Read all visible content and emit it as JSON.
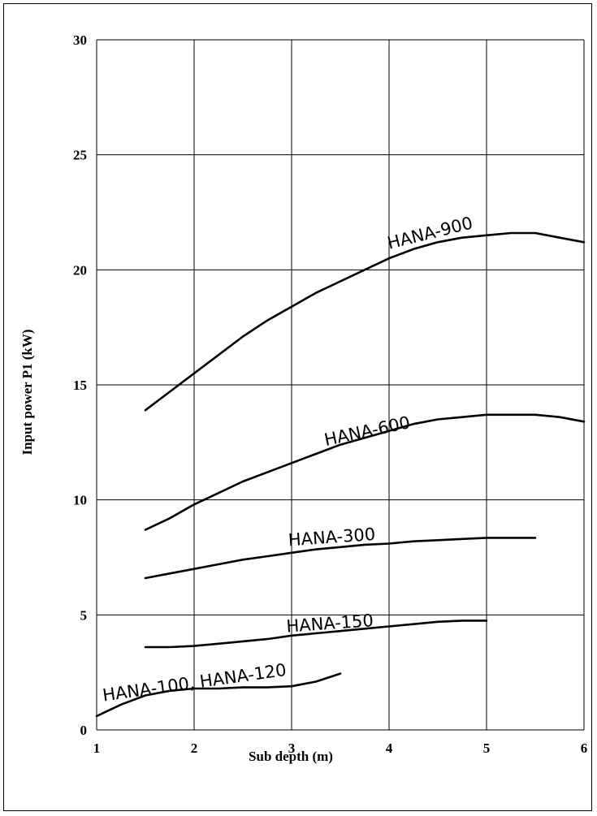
{
  "chart_data": {
    "type": "line",
    "xlabel": "Sub depth (m)",
    "ylabel": "Input power P1 (kW)",
    "xlim": [
      1,
      6
    ],
    "ylim": [
      0,
      30
    ],
    "xticks": [
      1,
      2,
      3,
      4,
      5,
      6
    ],
    "yticks": [
      0,
      5,
      10,
      15,
      20,
      25,
      30
    ],
    "grid": true,
    "series": [
      {
        "name": "HANA-900",
        "x": [
          1.5,
          1.75,
          2.0,
          2.25,
          2.5,
          2.75,
          3.0,
          3.25,
          3.5,
          3.75,
          4.0,
          4.25,
          4.5,
          4.75,
          5.0,
          5.25,
          5.5,
          5.75,
          6.0
        ],
        "y": [
          13.9,
          14.7,
          15.5,
          16.3,
          17.1,
          17.8,
          18.4,
          19.0,
          19.5,
          20.0,
          20.5,
          20.9,
          21.2,
          21.4,
          21.5,
          21.6,
          21.6,
          21.4,
          21.2
        ]
      },
      {
        "name": "HANA-600",
        "x": [
          1.5,
          1.75,
          2.0,
          2.25,
          2.5,
          2.75,
          3.0,
          3.25,
          3.5,
          3.75,
          4.0,
          4.25,
          4.5,
          4.75,
          5.0,
          5.25,
          5.5,
          5.75,
          6.0
        ],
        "y": [
          8.7,
          9.2,
          9.8,
          10.3,
          10.8,
          11.2,
          11.6,
          12.0,
          12.4,
          12.7,
          13.0,
          13.3,
          13.5,
          13.6,
          13.7,
          13.7,
          13.7,
          13.6,
          13.4
        ]
      },
      {
        "name": "HANA-300",
        "x": [
          1.5,
          1.75,
          2.0,
          2.25,
          2.5,
          2.75,
          3.0,
          3.25,
          3.5,
          3.75,
          4.0,
          4.25,
          4.5,
          4.75,
          5.0,
          5.25,
          5.5
        ],
        "y": [
          6.6,
          6.8,
          7.0,
          7.2,
          7.4,
          7.55,
          7.7,
          7.85,
          7.95,
          8.05,
          8.1,
          8.2,
          8.25,
          8.3,
          8.35,
          8.35,
          8.35
        ]
      },
      {
        "name": "HANA-150",
        "x": [
          1.5,
          1.75,
          2.0,
          2.25,
          2.5,
          2.75,
          3.0,
          3.25,
          3.5,
          3.75,
          4.0,
          4.25,
          4.5,
          4.75,
          5.0
        ],
        "y": [
          3.6,
          3.6,
          3.65,
          3.75,
          3.85,
          3.95,
          4.1,
          4.2,
          4.3,
          4.4,
          4.5,
          4.6,
          4.7,
          4.75,
          4.75
        ]
      },
      {
        "name": "HANA-100, HANA-120",
        "x": [
          1.0,
          1.25,
          1.5,
          1.75,
          2.0,
          2.25,
          2.5,
          2.75,
          3.0,
          3.25,
          3.5
        ],
        "y": [
          0.6,
          1.1,
          1.5,
          1.7,
          1.8,
          1.8,
          1.85,
          1.85,
          1.9,
          2.1,
          2.45
        ]
      }
    ],
    "annotations": [
      {
        "text": "HANA-900",
        "series": 0
      },
      {
        "text": "HANA-600",
        "series": 1
      },
      {
        "text": "HANA-300",
        "series": 2
      },
      {
        "text": "HANA-150",
        "series": 3
      },
      {
        "text": "HANA-100, HANA-120",
        "series": 4
      }
    ]
  }
}
